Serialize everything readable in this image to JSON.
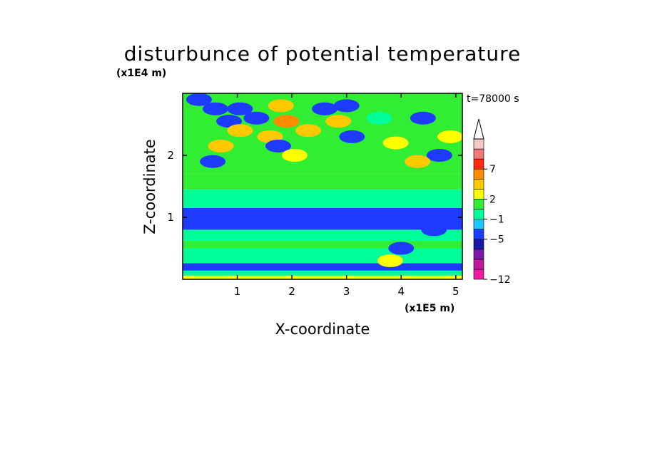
{
  "chart_data": {
    "type": "heatmap",
    "title": "disturbunce of potential temperature",
    "time_label": "t=78000 s",
    "xlabel": "X-coordinate",
    "ylabel": "Z-coordinate",
    "x_unit": "(x1E5 m)",
    "y_unit": "(x1E4 m)",
    "xlim": [
      0,
      5.12
    ],
    "ylim": [
      0,
      3.0
    ],
    "x_ticks": [
      "1",
      "2",
      "3",
      "4",
      "5"
    ],
    "x_tick_values": [
      1,
      2,
      3,
      4,
      5
    ],
    "y_ticks": [
      "1",
      "2"
    ],
    "y_tick_values": [
      1,
      2
    ],
    "colorbar": {
      "levels": [
        -12,
        -11,
        -9,
        -7,
        -5,
        -3,
        -1,
        1,
        2,
        3,
        5,
        7,
        9,
        11
      ],
      "tick_labels": [
        "7",
        "2",
        "−1",
        "−5",
        "−12"
      ],
      "tick_values": [
        7,
        2,
        -1,
        -5,
        -12
      ],
      "colors": [
        "#ee1aa0",
        "#c3179a",
        "#7a1aa8",
        "#1a1aa8",
        "#1e3cff",
        "#19c8ff",
        "#00ff99",
        "#32ee32",
        "#ffff00",
        "#ffc800",
        "#ff8c00",
        "#ff2a10",
        "#ee7777",
        "#f5c8c8"
      ],
      "extend": "max-arrow"
    },
    "bands": [
      {
        "z": [
          0.0,
          0.06
        ],
        "value": 2
      },
      {
        "z": [
          0.06,
          0.14
        ],
        "value": 0
      },
      {
        "z": [
          0.14,
          0.26
        ],
        "value": -4
      },
      {
        "z": [
          0.26,
          0.5
        ],
        "value": 0
      },
      {
        "z": [
          0.5,
          0.62
        ],
        "value": 1.5
      },
      {
        "z": [
          0.62,
          0.8
        ],
        "value": 0
      },
      {
        "z": [
          0.8,
          1.15
        ],
        "value": -4
      },
      {
        "z": [
          1.15,
          1.45
        ],
        "value": 0
      },
      {
        "z": [
          1.45,
          1.7
        ],
        "value": 1.5
      },
      {
        "z": [
          1.7,
          3.0
        ],
        "value": 1.5
      }
    ],
    "features": [
      {
        "x": 0.3,
        "z": 2.9,
        "value": -5
      },
      {
        "x": 0.6,
        "z": 2.75,
        "value": -4
      },
      {
        "x": 0.85,
        "z": 2.55,
        "value": -4
      },
      {
        "x": 1.05,
        "z": 2.75,
        "value": -4
      },
      {
        "x": 1.8,
        "z": 2.8,
        "value": 4
      },
      {
        "x": 1.9,
        "z": 2.55,
        "value": 6
      },
      {
        "x": 1.6,
        "z": 2.3,
        "value": 4
      },
      {
        "x": 0.7,
        "z": 2.15,
        "value": 4
      },
      {
        "x": 1.05,
        "z": 2.4,
        "value": 4
      },
      {
        "x": 1.35,
        "z": 2.6,
        "value": -4
      },
      {
        "x": 2.3,
        "z": 2.4,
        "value": 4
      },
      {
        "x": 2.6,
        "z": 2.75,
        "value": -5
      },
      {
        "x": 2.85,
        "z": 2.55,
        "value": 4
      },
      {
        "x": 3.0,
        "z": 2.8,
        "value": -4
      },
      {
        "x": 1.75,
        "z": 2.15,
        "value": -4
      },
      {
        "x": 2.05,
        "z": 2.0,
        "value": 2.5
      },
      {
        "x": 3.1,
        "z": 2.3,
        "value": -4
      },
      {
        "x": 0.55,
        "z": 1.9,
        "value": -4
      },
      {
        "x": 4.4,
        "z": 2.6,
        "value": -4
      },
      {
        "x": 4.7,
        "z": 2.0,
        "value": -4
      },
      {
        "x": 4.9,
        "z": 2.3,
        "value": 2.5
      },
      {
        "x": 3.9,
        "z": 2.2,
        "value": 2.5
      },
      {
        "x": 4.3,
        "z": 1.9,
        "value": 3
      },
      {
        "x": 3.6,
        "z": 2.6,
        "value": -1
      },
      {
        "x": 4.6,
        "z": 0.8,
        "value": -4
      },
      {
        "x": 4.0,
        "z": 0.5,
        "value": -4
      },
      {
        "x": 3.8,
        "z": 0.3,
        "value": 2
      }
    ]
  }
}
